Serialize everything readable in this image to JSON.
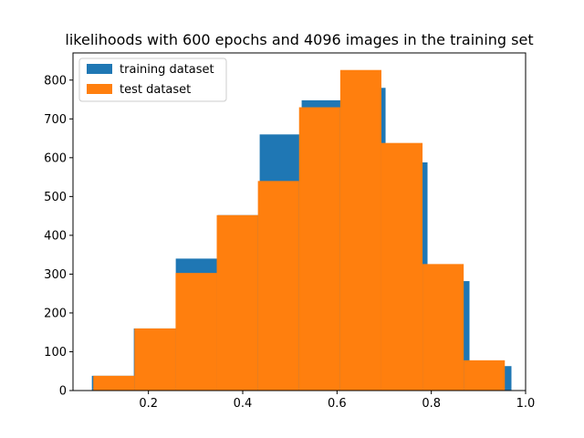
{
  "chart_data": {
    "type": "bar",
    "title": "likelihoods with 600 epochs and 4096 images in the training set",
    "xlabel": "",
    "ylabel": "",
    "xlim": [
      0.04,
      1.0
    ],
    "ylim": [
      0,
      870
    ],
    "x_ticks": [
      0.2,
      0.4,
      0.6,
      0.8,
      1.0
    ],
    "x_tick_labels": [
      "0.2",
      "0.4",
      "0.6",
      "0.8",
      "1.0"
    ],
    "y_ticks": [
      0,
      100,
      200,
      300,
      400,
      500,
      600,
      700,
      800
    ],
    "y_tick_labels": [
      "0",
      "100",
      "200",
      "300",
      "400",
      "500",
      "600",
      "700",
      "800"
    ],
    "legend_position": "top-left",
    "grid": false,
    "series": [
      {
        "name": "training dataset",
        "color": "#1f77b4",
        "bin_edges": [
          0.08,
          0.169,
          0.258,
          0.347,
          0.436,
          0.525,
          0.614,
          0.703,
          0.792,
          0.881,
          0.97
        ],
        "values": [
          38,
          160,
          340,
          452,
          660,
          748,
          780,
          588,
          282,
          63
        ]
      },
      {
        "name": "test dataset",
        "color": "#ff7f0e",
        "bin_edges": [
          0.083,
          0.1703,
          0.2576,
          0.3449,
          0.4322,
          0.5195,
          0.6068,
          0.6941,
          0.7814,
          0.8687,
          0.956
        ],
        "values": [
          38,
          160,
          303,
          452,
          540,
          730,
          826,
          638,
          326,
          78
        ]
      }
    ]
  }
}
